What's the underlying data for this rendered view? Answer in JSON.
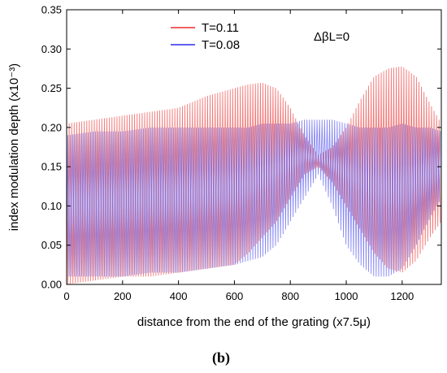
{
  "chart_data": {
    "type": "line",
    "xlabel": "distance from the end of the grating (x7.5μ)",
    "ylabel": "index modulation depth (x10⁻³)",
    "xlim": [
      0,
      1340
    ],
    "ylim": [
      0.0,
      0.35
    ],
    "xticks": [
      0,
      200,
      400,
      600,
      800,
      1000,
      1200
    ],
    "yticks": [
      "0.00",
      "0.05",
      "0.10",
      "0.15",
      "0.20",
      "0.25",
      "0.30",
      "0.35"
    ],
    "annotation": "ΔβL=0",
    "panel_label": "(b)",
    "legend_position": "top-left",
    "grid": false,
    "series": [
      {
        "name": "T=0.11",
        "color": "#f06060",
        "envelope_x": [
          0,
          100,
          200,
          300,
          400,
          500,
          600,
          650,
          700,
          750,
          800,
          850,
          900,
          950,
          1000,
          1050,
          1100,
          1150,
          1200,
          1250,
          1300,
          1340
        ],
        "upper": [
          0.205,
          0.21,
          0.215,
          0.22,
          0.225,
          0.24,
          0.25,
          0.255,
          0.257,
          0.25,
          0.225,
          0.19,
          0.165,
          0.175,
          0.2,
          0.235,
          0.265,
          0.275,
          0.278,
          0.265,
          0.23,
          0.205
        ],
        "lower": [
          0.0,
          0.005,
          0.01,
          0.01,
          0.015,
          0.02,
          0.025,
          0.04,
          0.06,
          0.08,
          0.11,
          0.14,
          0.15,
          0.13,
          0.1,
          0.07,
          0.04,
          0.02,
          0.015,
          0.03,
          0.06,
          0.08
        ]
      },
      {
        "name": "T=0.08",
        "color": "#6060f0",
        "envelope_x": [
          0,
          100,
          200,
          300,
          400,
          500,
          600,
          650,
          700,
          750,
          800,
          850,
          900,
          950,
          1000,
          1050,
          1100,
          1150,
          1200,
          1250,
          1300,
          1340
        ],
        "upper": [
          0.19,
          0.195,
          0.195,
          0.2,
          0.2,
          0.2,
          0.2,
          0.2,
          0.205,
          0.205,
          0.205,
          0.21,
          0.21,
          0.21,
          0.205,
          0.2,
          0.2,
          0.2,
          0.205,
          0.2,
          0.2,
          0.195
        ],
        "lower": [
          0.01,
          0.01,
          0.01,
          0.015,
          0.015,
          0.02,
          0.025,
          0.03,
          0.035,
          0.05,
          0.08,
          0.11,
          0.14,
          0.1,
          0.05,
          0.025,
          0.01,
          0.01,
          0.02,
          0.05,
          0.085,
          0.11
        ]
      }
    ]
  }
}
